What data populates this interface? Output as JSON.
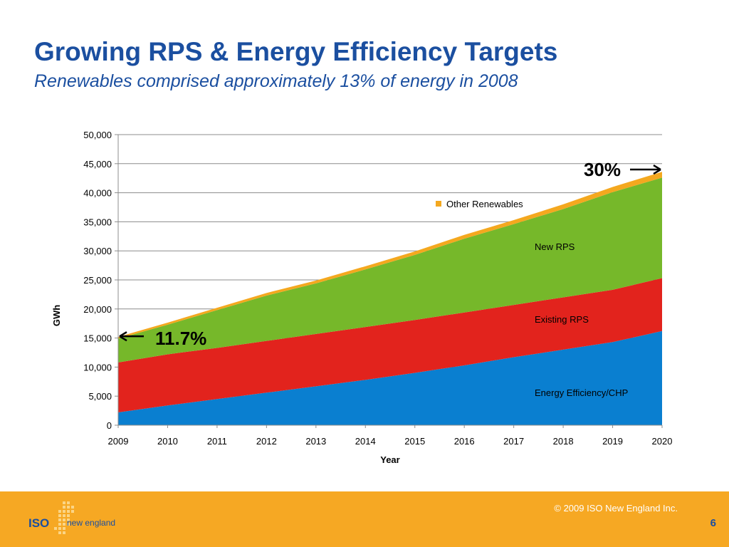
{
  "slide": {
    "title": "Growing RPS & Energy Efficiency Targets",
    "subtitle": "Renewables comprised approximately 13% of energy in 2008",
    "copyright": "© 2009 ISO New England Inc.",
    "page_number": "6",
    "logo": {
      "iso": "ISO",
      "name": "new england"
    }
  },
  "colors": {
    "title": "#1b4fa0",
    "footer": "#f6a823",
    "energy_efficiency": "#0a7fd0",
    "existing_rps": "#e2231d",
    "new_rps": "#76b82a",
    "other_renewables": "#f4a81f"
  },
  "chart_data": {
    "type": "area",
    "stacked": true,
    "x": [
      2009,
      2010,
      2011,
      2012,
      2013,
      2014,
      2015,
      2016,
      2017,
      2018,
      2019,
      2020
    ],
    "xlabel": "Year",
    "ylabel": "GWh",
    "ylim": [
      0,
      50000
    ],
    "yticks": [
      "0",
      "5,000",
      "10,000",
      "15,000",
      "20,000",
      "25,000",
      "30,000",
      "35,000",
      "40,000",
      "45,000",
      "50,000"
    ],
    "grid": true,
    "series": [
      {
        "name": "Energy Efficiency/CHP",
        "color": "#0a7fd0",
        "values": [
          2200,
          3400,
          4500,
          5600,
          6700,
          7800,
          9000,
          10300,
          11700,
          13000,
          14300,
          16200
        ]
      },
      {
        "name": "Existing RPS",
        "color": "#e2231d",
        "values": [
          8600,
          8800,
          8800,
          8900,
          9000,
          9100,
          9100,
          9100,
          9000,
          9000,
          9000,
          9100
        ]
      },
      {
        "name": "New RPS",
        "color": "#76b82a",
        "values": [
          4100,
          5100,
          6500,
          7800,
          8700,
          9900,
          11200,
          12700,
          13900,
          15200,
          16800,
          17300
        ]
      },
      {
        "name": "Other Renewables",
        "color": "#f4a81f",
        "values": [
          300,
          350,
          400,
          450,
          500,
          550,
          600,
          650,
          700,
          800,
          900,
          1000
        ]
      }
    ],
    "legend": {
      "entries": [
        "Other Renewables"
      ],
      "placement": "inside-top"
    },
    "annotations": [
      {
        "text": "11.7%",
        "x": 2009,
        "y": 15300,
        "arrow": "left"
      },
      {
        "text": "30%",
        "x": 2020,
        "y": 43500,
        "arrow": "right"
      }
    ]
  }
}
